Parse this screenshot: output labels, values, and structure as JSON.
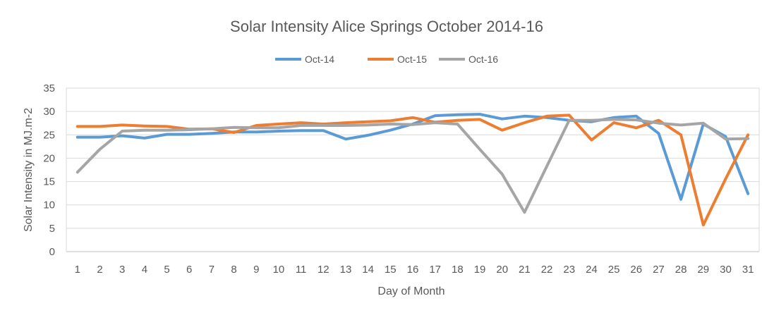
{
  "chart_data": {
    "type": "line",
    "title": "Solar Intensity Alice Springs October 2014-16",
    "xlabel": "Day of Month",
    "ylabel": "Solar Intensity in MJ.m-2",
    "categories": [
      "1",
      "2",
      "3",
      "4",
      "5",
      "6",
      "7",
      "8",
      "9",
      "10",
      "11",
      "12",
      "13",
      "14",
      "15",
      "16",
      "17",
      "18",
      "19",
      "20",
      "21",
      "22",
      "23",
      "24",
      "25",
      "26",
      "27",
      "28",
      "29",
      "30",
      "31"
    ],
    "ylim": [
      0,
      35
    ],
    "yticks": [
      0,
      5,
      10,
      15,
      20,
      25,
      30,
      35
    ],
    "grid": "horizontal",
    "legend_position": "top",
    "series": [
      {
        "name": "Oct-14",
        "color": "#5B9BD5",
        "values": [
          24.5,
          24.5,
          24.8,
          24.3,
          25.1,
          25.1,
          25.3,
          25.6,
          25.6,
          25.8,
          25.9,
          25.9,
          24.1,
          24.9,
          26.0,
          27.3,
          29.1,
          29.3,
          29.4,
          28.4,
          29.0,
          28.7,
          28.1,
          27.8,
          28.7,
          29.0,
          25.3,
          11.2,
          27.3,
          24.6,
          12.4
        ]
      },
      {
        "name": "Oct-15",
        "color": "#ED7D31",
        "values": [
          26.8,
          26.8,
          27.1,
          26.9,
          26.8,
          26.2,
          26.3,
          25.5,
          27.0,
          27.3,
          27.6,
          27.3,
          27.6,
          27.8,
          28.0,
          28.7,
          27.7,
          28.1,
          28.3,
          26.0,
          27.6,
          29.0,
          29.2,
          23.9,
          27.6,
          26.5,
          28.1,
          25.0,
          5.7,
          15.6,
          25.0
        ]
      },
      {
        "name": "Oct-16",
        "color": "#A5A5A5",
        "values": [
          17.0,
          21.9,
          25.8,
          26.0,
          26.0,
          26.1,
          26.3,
          26.6,
          26.5,
          26.5,
          27.0,
          27.0,
          27.0,
          27.1,
          27.3,
          27.2,
          27.6,
          27.3,
          21.9,
          16.6,
          8.4,
          18.3,
          28.1,
          28.1,
          28.3,
          28.2,
          27.5,
          27.1,
          27.5,
          24.1,
          24.2
        ]
      }
    ]
  }
}
